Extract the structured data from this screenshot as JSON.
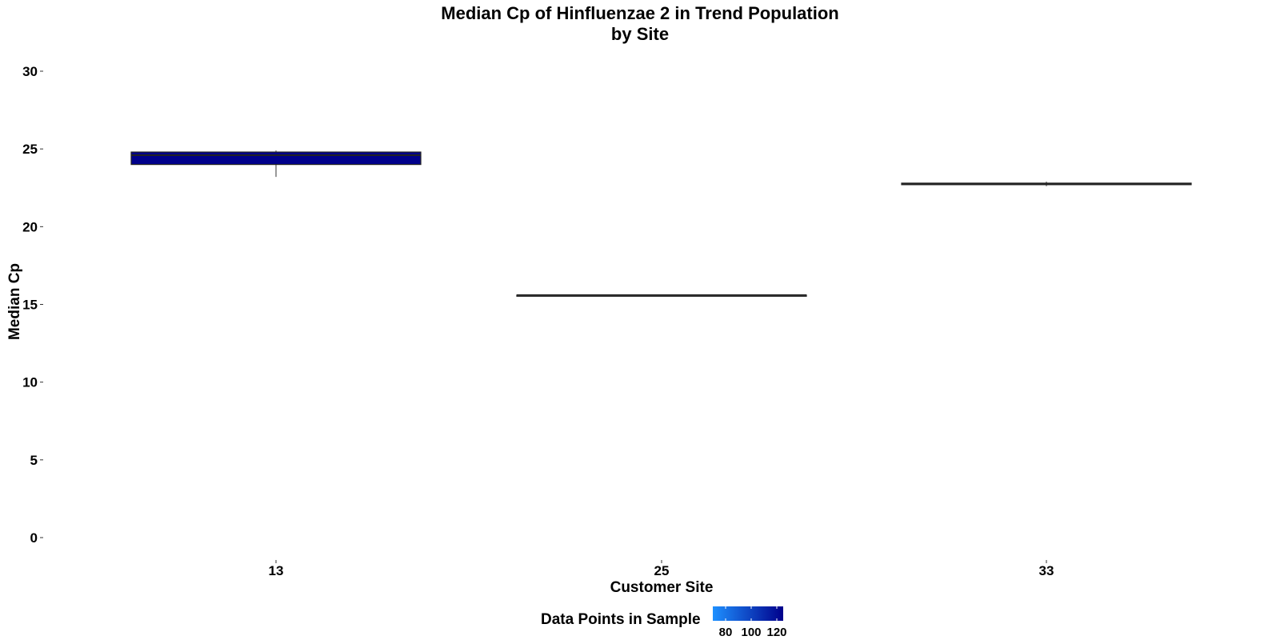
{
  "chart_data": {
    "type": "boxplot",
    "title": "Median Cp of Hinfluenzae 2 in Trend Population",
    "subtitle": "by Site",
    "xlabel": "Customer Site",
    "ylabel": "Median Cp",
    "ylim": [
      -1.5,
      31
    ],
    "yticks": [
      "0",
      "5",
      "10",
      "15",
      "20",
      "25",
      "30"
    ],
    "ytick_values": [
      0,
      5,
      10,
      15,
      20,
      25,
      30
    ],
    "categories": [
      "13",
      "25",
      "33"
    ],
    "boxes": [
      {
        "site": "13",
        "q1": 24.0,
        "median": 24.6,
        "q3": 24.8,
        "whisker_low": 23.2,
        "whisker_high": 24.9,
        "n": 125,
        "fill": "#00008b"
      },
      {
        "site": "25",
        "q1": 15.6,
        "median": 15.6,
        "q3": 15.6,
        "whisker_low": 15.6,
        "whisker_high": 15.6,
        "n": null,
        "fill": "#ffffff"
      },
      {
        "site": "33",
        "q1": 22.7,
        "median": 22.75,
        "q3": 22.8,
        "whisker_low": 22.6,
        "whisker_high": 22.9,
        "n": null,
        "fill": "#333333"
      }
    ],
    "grid": false,
    "legend": {
      "title": "Data Points in Sample",
      "placement": "bottom",
      "tick_labels": [
        "80",
        "100",
        "120"
      ],
      "tick_values": [
        80,
        100,
        120
      ],
      "range": [
        70,
        125
      ],
      "color_low": "#1e90ff",
      "color_high": "#00008b"
    }
  }
}
